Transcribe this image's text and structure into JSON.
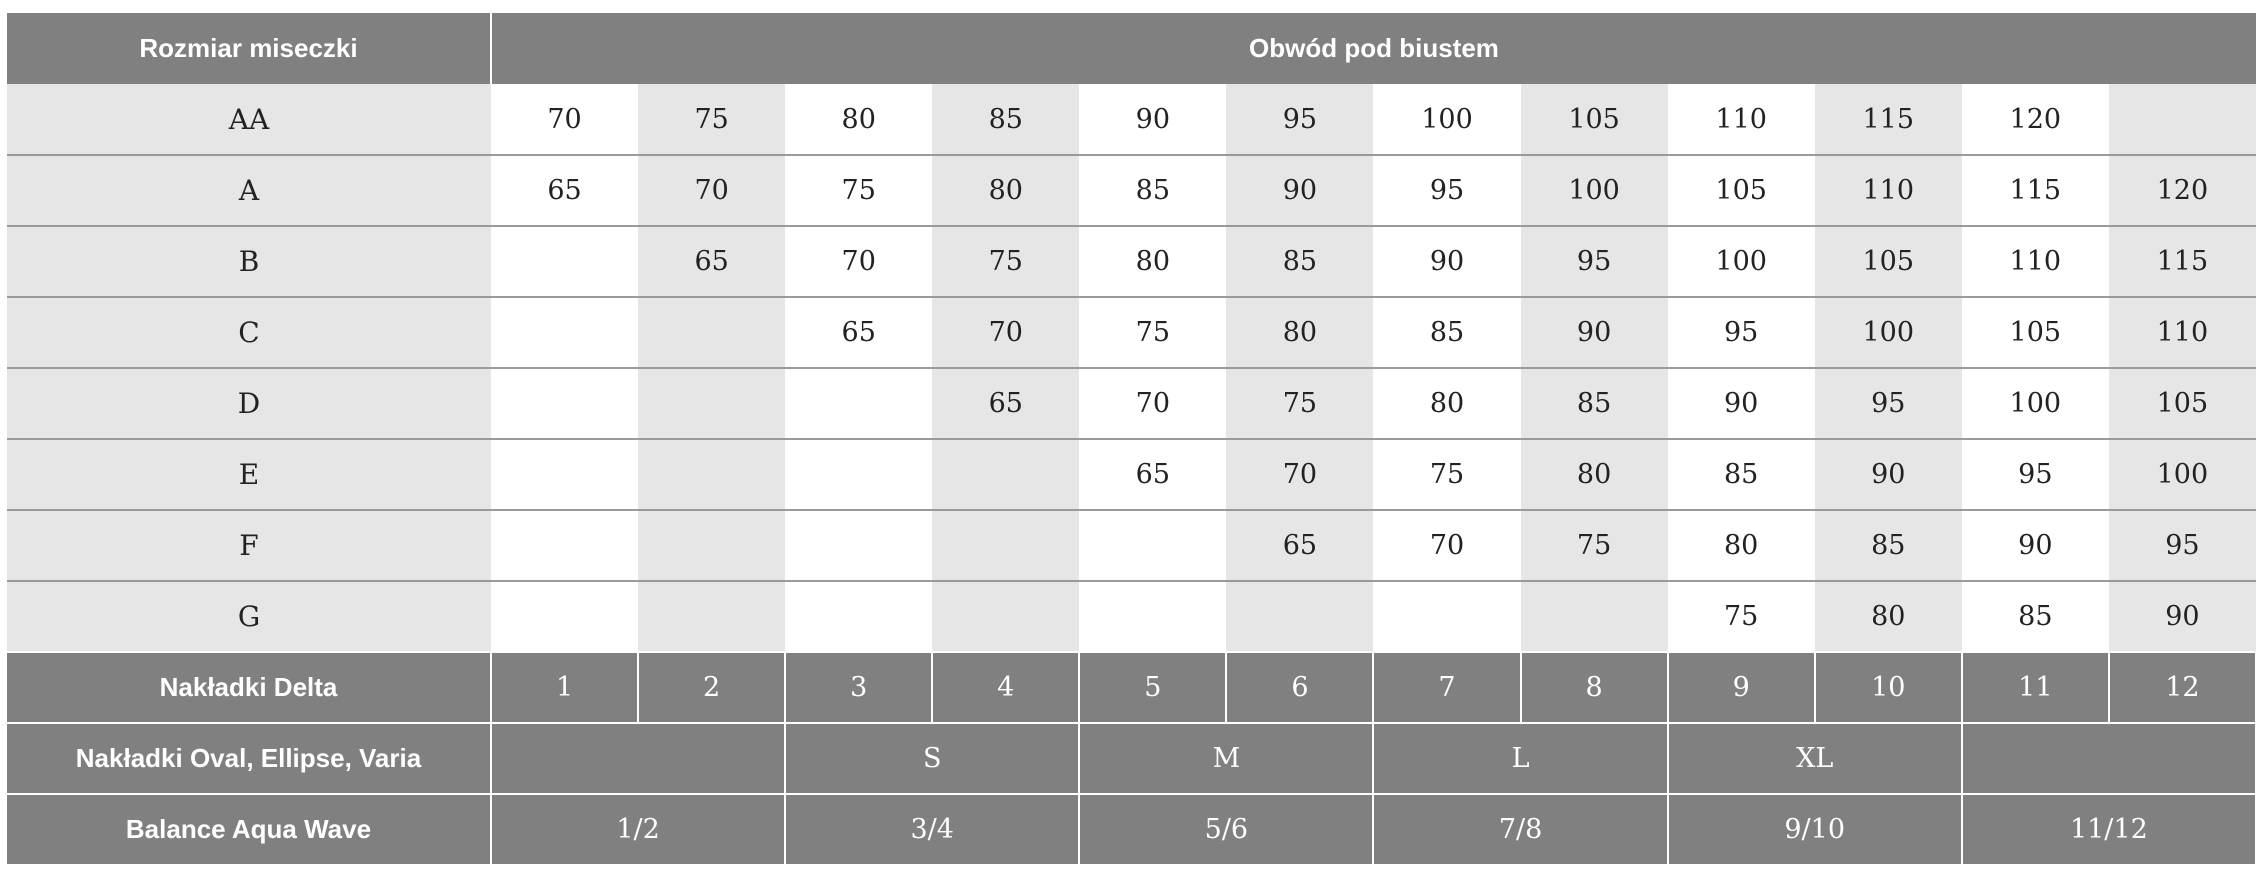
{
  "header": {
    "cup_size": "Rozmiar miseczki",
    "underbust": "Obwód pod biustem"
  },
  "rows": [
    {
      "cup": "AA",
      "values": [
        "70",
        "75",
        "80",
        "85",
        "90",
        "95",
        "100",
        "105",
        "110",
        "115",
        "120",
        ""
      ]
    },
    {
      "cup": "A",
      "values": [
        "65",
        "70",
        "75",
        "80",
        "85",
        "90",
        "95",
        "100",
        "105",
        "110",
        "115",
        "120"
      ]
    },
    {
      "cup": "B",
      "values": [
        "",
        "65",
        "70",
        "75",
        "80",
        "85",
        "90",
        "95",
        "100",
        "105",
        "110",
        "115"
      ]
    },
    {
      "cup": "C",
      "values": [
        "",
        "",
        "65",
        "70",
        "75",
        "80",
        "85",
        "90",
        "95",
        "100",
        "105",
        "110"
      ]
    },
    {
      "cup": "D",
      "values": [
        "",
        "",
        "",
        "65",
        "70",
        "75",
        "80",
        "85",
        "90",
        "95",
        "100",
        "105"
      ]
    },
    {
      "cup": "E",
      "values": [
        "",
        "",
        "",
        "",
        "65",
        "70",
        "75",
        "80",
        "85",
        "90",
        "95",
        "100"
      ]
    },
    {
      "cup": "F",
      "values": [
        "",
        "",
        "",
        "",
        "",
        "65",
        "70",
        "75",
        "80",
        "85",
        "90",
        "95"
      ]
    },
    {
      "cup": "G",
      "values": [
        "",
        "",
        "",
        "",
        "",
        "",
        "",
        "",
        "75",
        "80",
        "85",
        "90"
      ]
    }
  ],
  "delta": {
    "label": "Nakładki Delta",
    "values": [
      "1",
      "2",
      "3",
      "4",
      "5",
      "6",
      "7",
      "8",
      "9",
      "10",
      "11",
      "12"
    ]
  },
  "oval": {
    "label": "Nakładki Oval, Ellipse, Varia",
    "values": [
      "",
      "S",
      "M",
      "L",
      "XL",
      ""
    ]
  },
  "balance": {
    "label": "Balance Aqua Wave",
    "values": [
      "1/2",
      "3/4",
      "5/6",
      "7/8",
      "9/10",
      "11/12"
    ]
  },
  "colors": {
    "header_bg": "#808080",
    "shade": "#e6e6e6",
    "text": "#222222"
  }
}
